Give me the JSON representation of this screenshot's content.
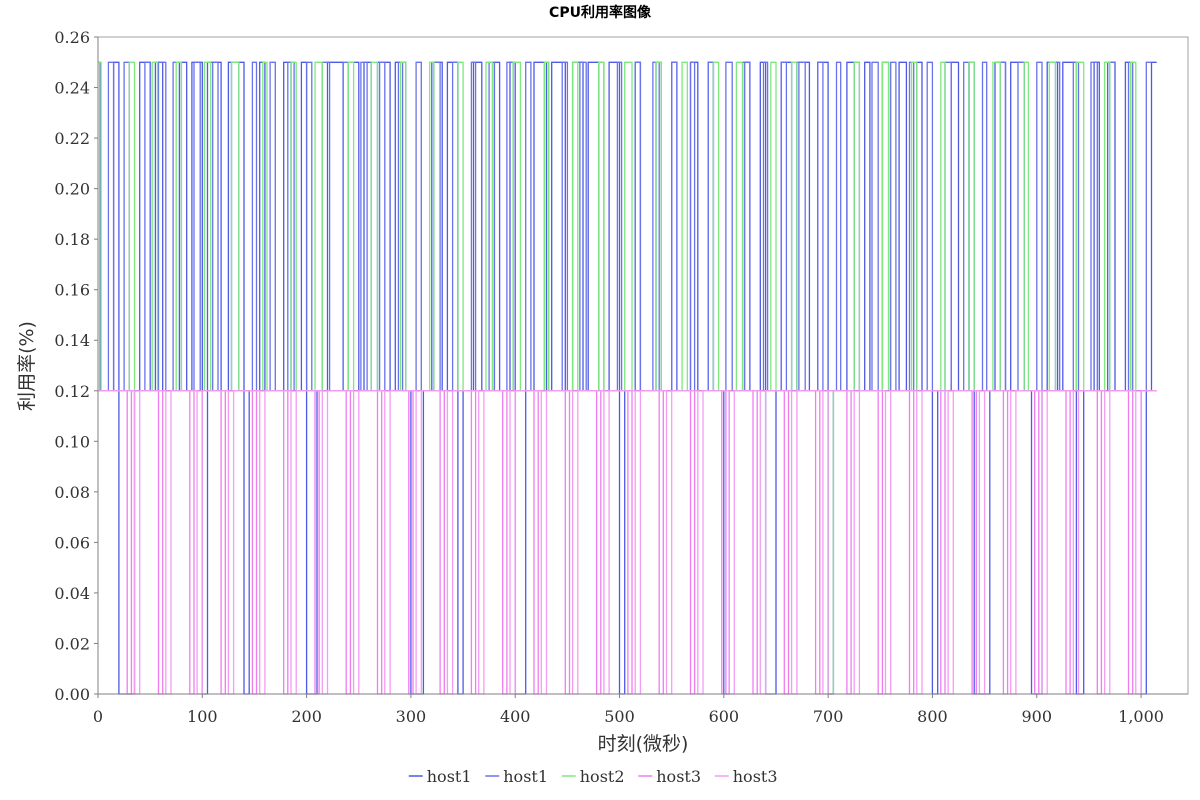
{
  "chart_data": {
    "type": "line",
    "title": "CPU利用率图像",
    "xlabel": "时刻(微秒)",
    "ylabel": "利用率(%)",
    "xlim": [
      0,
      1045
    ],
    "ylim": [
      0,
      0.26
    ],
    "x_ticks": [
      0,
      100,
      200,
      300,
      400,
      500,
      600,
      700,
      800,
      900,
      1000
    ],
    "x_tick_labels": [
      "0",
      "100",
      "200",
      "300",
      "400",
      "500",
      "600",
      "700",
      "800",
      "900",
      "1,000"
    ],
    "y_ticks": [
      0,
      0.02,
      0.04,
      0.06,
      0.08,
      0.1,
      0.12,
      0.14,
      0.16,
      0.18,
      0.2,
      0.22,
      0.24,
      0.26
    ],
    "y_tick_labels": [
      "0.00",
      "0.02",
      "0.04",
      "0.06",
      "0.08",
      "0.10",
      "0.12",
      "0.14",
      "0.16",
      "0.18",
      "0.20",
      "0.22",
      "0.24",
      "0.26"
    ],
    "grid": false,
    "legend_position": "bottom",
    "step": true,
    "series": [
      {
        "name": "host1",
        "color": "#4e59e6",
        "x": [
          0,
          2,
          15,
          20,
          35,
          40,
          50,
          55,
          62,
          78,
          85,
          90,
          100,
          105,
          118,
          125,
          140,
          145,
          155,
          160,
          178,
          185,
          195,
          200,
          210,
          220,
          235,
          240,
          250,
          255,
          262,
          268,
          280,
          285,
          295,
          300,
          312,
          320,
          330,
          335,
          345,
          350,
          360,
          368,
          380,
          385,
          395,
          400,
          410,
          418,
          430,
          435,
          448,
          455,
          465,
          470,
          480,
          490,
          500,
          505,
          515,
          520,
          535,
          540,
          550,
          555,
          568,
          575,
          585,
          590,
          600,
          605,
          618,
          625,
          635,
          640,
          650,
          655,
          665,
          670,
          682,
          690,
          700,
          705,
          718,
          725,
          735,
          740,
          752,
          758,
          768,
          775,
          785,
          790,
          800,
          805,
          818,
          825,
          835,
          840,
          855,
          860,
          870,
          875,
          888,
          895,
          905,
          910,
          920,
          925,
          938,
          945,
          955,
          960,
          968,
          975,
          985,
          990,
          1000,
          1005,
          1010,
          1015
        ],
        "y": [
          0.25,
          0.12,
          0.25,
          0.0,
          0.12,
          0.25,
          0.12,
          0.25,
          0.12,
          0.25,
          0.12,
          0.25,
          0.0,
          0.25,
          0.12,
          0.25,
          0.0,
          0.12,
          0.25,
          0.12,
          0.25,
          0.12,
          0.25,
          0.0,
          0.12,
          0.25,
          0.12,
          0.25,
          0.12,
          0.25,
          0.12,
          0.25,
          0.12,
          0.25,
          0.12,
          0.0,
          0.12,
          0.25,
          0.12,
          0.25,
          0.0,
          0.12,
          0.25,
          0.12,
          0.25,
          0.12,
          0.25,
          0.0,
          0.12,
          0.25,
          0.12,
          0.25,
          0.12,
          0.25,
          0.12,
          0.25,
          0.12,
          0.25,
          0.0,
          0.12,
          0.25,
          0.12,
          0.25,
          0.12,
          0.25,
          0.12,
          0.25,
          0.12,
          0.25,
          0.12,
          0.0,
          0.12,
          0.25,
          0.12,
          0.25,
          0.0,
          0.12,
          0.25,
          0.12,
          0.25,
          0.12,
          0.25,
          0.0,
          0.12,
          0.25,
          0.12,
          0.25,
          0.12,
          0.25,
          0.12,
          0.25,
          0.12,
          0.25,
          0.12,
          0.0,
          0.12,
          0.25,
          0.12,
          0.25,
          0.0,
          0.12,
          0.25,
          0.12,
          0.25,
          0.12,
          0.0,
          0.12,
          0.25,
          0.12,
          0.25,
          0.0,
          0.12,
          0.25,
          0.12,
          0.25,
          0.12,
          0.25,
          0.12,
          0.0,
          0.12,
          0.25,
          0.25
        ]
      },
      {
        "name": "host1",
        "color": "#6a72ee",
        "x": [
          0,
          2,
          10,
          15,
          25,
          30,
          45,
          50,
          58,
          65,
          72,
          80,
          92,
          98,
          110,
          115,
          128,
          135,
          148,
          152,
          165,
          170,
          182,
          188,
          200,
          205,
          215,
          222,
          235,
          240,
          252,
          258,
          270,
          275,
          288,
          292,
          305,
          310,
          322,
          328,
          340,
          345,
          358,
          362,
          375,
          380,
          392,
          398,
          410,
          415,
          428,
          432,
          445,
          450,
          462,
          468,
          480,
          485,
          498,
          502,
          515,
          520,
          532,
          538,
          550,
          555,
          568,
          572,
          585,
          590,
          602,
          608,
          620,
          625,
          638,
          642,
          655,
          660,
          672,
          678,
          690,
          695,
          708,
          712,
          725,
          730,
          742,
          748,
          760,
          765,
          778,
          782,
          795,
          800,
          812,
          818,
          830,
          835,
          848,
          852,
          865,
          870,
          882,
          888,
          900,
          905,
          918,
          922,
          935,
          940,
          952,
          958,
          970,
          975,
          988,
          992,
          1005,
          1010
        ],
        "y": [
          0.25,
          0.12,
          0.25,
          0.12,
          0.25,
          0.12,
          0.25,
          0.12,
          0.25,
          0.12,
          0.25,
          0.12,
          0.25,
          0.12,
          0.25,
          0.12,
          0.25,
          0.12,
          0.25,
          0.12,
          0.25,
          0.12,
          0.25,
          0.12,
          0.25,
          0.12,
          0.25,
          0.12,
          0.25,
          0.12,
          0.25,
          0.12,
          0.25,
          0.12,
          0.25,
          0.12,
          0.25,
          0.12,
          0.25,
          0.12,
          0.25,
          0.12,
          0.25,
          0.12,
          0.25,
          0.12,
          0.25,
          0.12,
          0.25,
          0.12,
          0.25,
          0.12,
          0.25,
          0.12,
          0.25,
          0.12,
          0.25,
          0.12,
          0.25,
          0.12,
          0.25,
          0.12,
          0.25,
          0.12,
          0.25,
          0.12,
          0.25,
          0.12,
          0.25,
          0.12,
          0.25,
          0.12,
          0.25,
          0.12,
          0.25,
          0.12,
          0.25,
          0.12,
          0.25,
          0.12,
          0.25,
          0.12,
          0.25,
          0.12,
          0.25,
          0.12,
          0.25,
          0.12,
          0.25,
          0.12,
          0.25,
          0.12,
          0.25,
          0.12,
          0.25,
          0.12,
          0.25,
          0.12,
          0.25,
          0.12,
          0.25,
          0.12,
          0.25,
          0.12,
          0.25,
          0.12,
          0.25,
          0.12,
          0.25,
          0.12,
          0.25,
          0.12,
          0.25,
          0.12,
          0.25,
          0.12,
          0.25,
          0.25
        ]
      },
      {
        "name": "host2",
        "color": "#7ee87e",
        "x": [
          0,
          3,
          30,
          35,
          52,
          57,
          75,
          80,
          102,
          108,
          128,
          135,
          158,
          162,
          185,
          190,
          208,
          215,
          240,
          245,
          262,
          268,
          290,
          295,
          318,
          322,
          345,
          350,
          372,
          378,
          398,
          405,
          428,
          432,
          455,
          460,
          480,
          485,
          505,
          512,
          535,
          540,
          560,
          565,
          590,
          595,
          612,
          618,
          645,
          650,
          665,
          670,
          700,
          705,
          725,
          730,
          752,
          758,
          780,
          785,
          808,
          812,
          835,
          840,
          858,
          865,
          888,
          892,
          912,
          918,
          938,
          945,
          965,
          970,
          990,
          995
        ],
        "y": [
          0.25,
          0.12,
          0.25,
          0.12,
          0.25,
          0.12,
          0.25,
          0.12,
          0.25,
          0.12,
          0.25,
          0.12,
          0.25,
          0.12,
          0.25,
          0.12,
          0.25,
          0.12,
          0.25,
          0.12,
          0.25,
          0.12,
          0.25,
          0.12,
          0.25,
          0.12,
          0.25,
          0.12,
          0.25,
          0.12,
          0.25,
          0.12,
          0.25,
          0.12,
          0.25,
          0.12,
          0.25,
          0.12,
          0.25,
          0.12,
          0.25,
          0.12,
          0.25,
          0.12,
          0.25,
          0.12,
          0.25,
          0.12,
          0.25,
          0.12,
          0.25,
          0.12,
          0.0,
          0.12,
          0.25,
          0.12,
          0.25,
          0.12,
          0.25,
          0.12,
          0.25,
          0.12,
          0.25,
          0.12,
          0.25,
          0.12,
          0.25,
          0.12,
          0.25,
          0.12,
          0.25,
          0.12,
          0.25,
          0.12,
          0.25,
          0.12
        ]
      },
      {
        "name": "host3",
        "color": "#f07cf0",
        "x": [
          0,
          28,
          32,
          58,
          62,
          88,
          92,
          118,
          122,
          148,
          152,
          178,
          182,
          208,
          212,
          238,
          242,
          268,
          272,
          298,
          302,
          328,
          332,
          358,
          362,
          388,
          392,
          418,
          422,
          448,
          452,
          478,
          482,
          508,
          512,
          538,
          542,
          568,
          572,
          598,
          602,
          628,
          632,
          658,
          662,
          688,
          692,
          718,
          722,
          748,
          752,
          778,
          782,
          808,
          812,
          838,
          842,
          868,
          872,
          898,
          902,
          928,
          932,
          958,
          962,
          988,
          992,
          1015
        ],
        "y": [
          0.12,
          0.0,
          0.12,
          0.0,
          0.12,
          0.0,
          0.12,
          0.0,
          0.12,
          0.0,
          0.12,
          0.0,
          0.12,
          0.0,
          0.12,
          0.0,
          0.12,
          0.0,
          0.12,
          0.0,
          0.12,
          0.0,
          0.12,
          0.0,
          0.12,
          0.0,
          0.12,
          0.0,
          0.12,
          0.0,
          0.12,
          0.0,
          0.12,
          0.0,
          0.12,
          0.0,
          0.12,
          0.0,
          0.12,
          0.0,
          0.12,
          0.0,
          0.12,
          0.0,
          0.12,
          0.0,
          0.12,
          0.0,
          0.12,
          0.0,
          0.12,
          0.0,
          0.12,
          0.0,
          0.12,
          0.0,
          0.12,
          0.0,
          0.12,
          0.0,
          0.12,
          0.0,
          0.12,
          0.0,
          0.12,
          0.0,
          0.12,
          0.12
        ]
      },
      {
        "name": "host3",
        "color": "#f49cf4",
        "x": [
          0,
          35,
          40,
          65,
          70,
          95,
          100,
          125,
          130,
          155,
          160,
          185,
          190,
          215,
          220,
          245,
          250,
          275,
          280,
          305,
          310,
          335,
          340,
          365,
          370,
          395,
          400,
          425,
          430,
          455,
          460,
          485,
          490,
          515,
          520,
          545,
          550,
          575,
          580,
          605,
          610,
          635,
          640,
          665,
          670,
          695,
          700,
          725,
          730,
          755,
          760,
          785,
          790,
          815,
          820,
          845,
          850,
          875,
          880,
          905,
          910,
          935,
          940,
          965,
          970,
          995,
          1000,
          1015
        ],
        "y": [
          0.12,
          0.0,
          0.12,
          0.0,
          0.12,
          0.0,
          0.12,
          0.0,
          0.12,
          0.0,
          0.12,
          0.0,
          0.12,
          0.0,
          0.12,
          0.0,
          0.12,
          0.0,
          0.12,
          0.0,
          0.12,
          0.0,
          0.12,
          0.0,
          0.12,
          0.0,
          0.12,
          0.0,
          0.12,
          0.0,
          0.12,
          0.0,
          0.12,
          0.0,
          0.12,
          0.0,
          0.12,
          0.0,
          0.12,
          0.0,
          0.12,
          0.0,
          0.12,
          0.0,
          0.12,
          0.0,
          0.12,
          0.0,
          0.12,
          0.0,
          0.12,
          0.0,
          0.12,
          0.0,
          0.12,
          0.0,
          0.12,
          0.0,
          0.12,
          0.0,
          0.12,
          0.0,
          0.12,
          0.0,
          0.12,
          0.0,
          0.12,
          0.12
        ]
      }
    ]
  }
}
